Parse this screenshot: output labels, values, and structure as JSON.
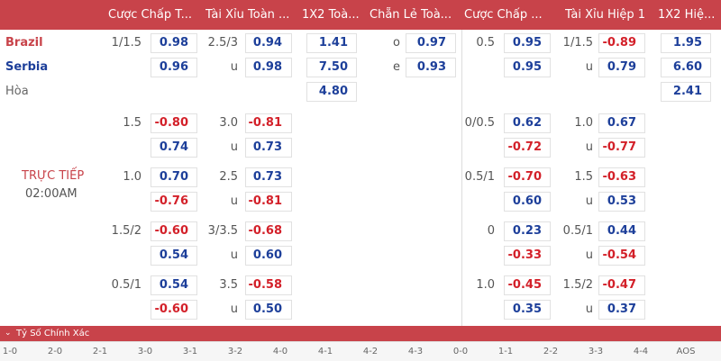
{
  "colors": {
    "accent": "#c8434a",
    "positive": "#1d3f9a",
    "negative": "#d32029"
  },
  "headers": [
    "Cược Chấp T...",
    "Tài Xỉu Toàn ...",
    "1X2 Toà...",
    "Chẵn Lẻ Toà...",
    "Cược Chấp ...",
    "Tài Xỉu Hiệp 1",
    "1X2 Hiệ..."
  ],
  "teams": {
    "home": "Brazil",
    "away": "Serbia",
    "draw": "Hòa"
  },
  "status": {
    "live": "TRỰC TIẾP",
    "time": "02:00AM"
  },
  "main": {
    "hcp_full": [
      "1/1.5",
      "",
      "",
      "",
      "1.5",
      "",
      "1.0",
      "",
      "1.5/2",
      "",
      "0.5/1",
      ""
    ],
    "hcp_full_odds": [
      "0.98",
      "0.96",
      "",
      "",
      "-0.80",
      "0.74",
      "0.70",
      "-0.76",
      "-0.60",
      "0.54",
      "0.54",
      "-0.60"
    ],
    "ou_full": [
      "2.5/3",
      "u",
      "",
      "",
      "3.0",
      "u",
      "2.5",
      "u",
      "3/3.5",
      "u",
      "3.5",
      "u"
    ],
    "ou_full_odds": [
      "0.94",
      "0.98",
      "",
      "",
      "-0.81",
      "0.73",
      "0.73",
      "-0.81",
      "-0.68",
      "0.60",
      "-0.58",
      "0.50"
    ],
    "x12_full": [
      "1.41",
      "7.50",
      "4.80"
    ],
    "oe_labels": [
      "o",
      "e"
    ],
    "oe_odds": [
      "0.97",
      "0.93"
    ],
    "hcp_h1": [
      "0.5",
      "",
      "",
      "",
      "0/0.5",
      "",
      "0.5/1",
      "",
      "0",
      "",
      "1.0",
      ""
    ],
    "hcp_h1_odds": [
      "0.95",
      "0.95",
      "",
      "",
      "0.62",
      "-0.72",
      "-0.70",
      "0.60",
      "0.23",
      "-0.33",
      "-0.45",
      "0.35"
    ],
    "ou_h1": [
      "1/1.5",
      "u",
      "",
      "",
      "1.0",
      "u",
      "1.5",
      "u",
      "0.5/1",
      "u",
      "1.5/2",
      "u"
    ],
    "ou_h1_odds": [
      "-0.89",
      "0.79",
      "",
      "",
      "0.67",
      "-0.77",
      "-0.63",
      "0.53",
      "0.44",
      "-0.54",
      "-0.47",
      "0.37"
    ],
    "x12_h1": [
      "1.95",
      "6.60",
      "2.41"
    ]
  },
  "footer": {
    "title": "Tỷ Số Chính Xác",
    "chevron": "⌄"
  },
  "scores": [
    "1-0",
    "2-0",
    "2-1",
    "3-0",
    "3-1",
    "3-2",
    "4-0",
    "4-1",
    "4-2",
    "4-3",
    "0-0",
    "1-1",
    "2-2",
    "3-3",
    "4-4",
    "AOS"
  ]
}
